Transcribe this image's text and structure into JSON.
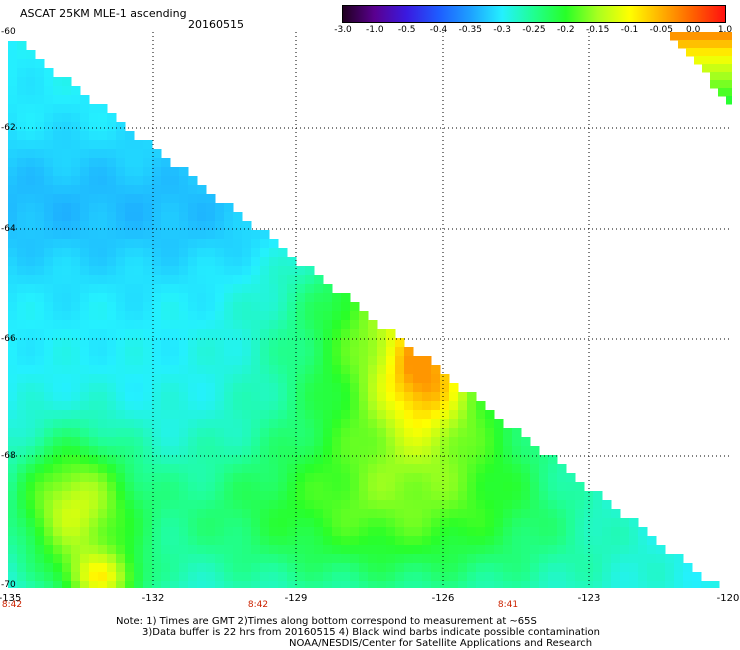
{
  "header": {
    "title": "ASCAT 25KM MLE-1 ascending",
    "date": "20160515"
  },
  "colorbar": {
    "labels": [
      "-3.0",
      "-1.0",
      "-0.5",
      "-0.4",
      "-0.35",
      "-0.3",
      "-0.25",
      "-0.2",
      "-0.15",
      "-0.1",
      "-0.05",
      "0.0",
      "1.0"
    ],
    "colors": [
      "#200020",
      "#5a0090",
      "#3a1ae0",
      "#1e5cff",
      "#1ea0ff",
      "#24f0ff",
      "#20ff90",
      "#28ff28",
      "#a8ff20",
      "#ffff00",
      "#ffb000",
      "#ff6000",
      "#ff1010"
    ]
  },
  "map": {
    "y_axis_labels": [
      "-60",
      "-62",
      "-64",
      "-66",
      "-68",
      "-70"
    ],
    "x_axis_labels": [
      "-135",
      "-132",
      "-129",
      "-126",
      "-123",
      "-120"
    ],
    "time_labels": [
      "8:42",
      "8:42",
      "8:41"
    ],
    "lat_range": [
      -70,
      -60
    ],
    "lon_range": [
      -135,
      -120
    ],
    "grid": true
  },
  "footer": {
    "line1": "Note: 1) Times are GMT 2)Times along bottom correspond to measurement at ~65S",
    "line2": "3)Data buffer is 22 hrs from 20160515 4) Black wind barbs indicate possible contamination",
    "line3": "NOAA/NESDIS/Center for Satellite Applications and Research"
  }
}
